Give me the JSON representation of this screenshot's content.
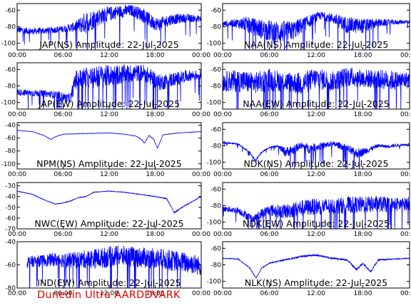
{
  "footer": "Dunedin Ultra AARDDVARK",
  "colors": {
    "trace": "#0000ff",
    "axis": "#000000",
    "footer": "#e00000"
  },
  "chart_data": [
    {
      "type": "line",
      "title": "JAP(NS) Amplitude: 22-Jul-2025",
      "xticks": [
        "00:00",
        "06:00",
        "12:00",
        "18:00",
        "00:00"
      ],
      "xlim": [
        0,
        24
      ],
      "yticks": [
        -100,
        -80,
        -60
      ],
      "ylim": [
        -108,
        -52
      ],
      "series": [
        {
          "kind": "noisy",
          "start": 0,
          "end": 24,
          "x": [
            0,
            2,
            4,
            6,
            7.5,
            9,
            11,
            13,
            15,
            16.5,
            17.5,
            18.5,
            20,
            22,
            24
          ],
          "y": [
            -84,
            -86,
            -85,
            -83,
            -81,
            -76,
            -68,
            -63,
            -61,
            -67,
            -75,
            -78,
            -72,
            -70,
            -71
          ],
          "noise": [
            4,
            4,
            4,
            4,
            6,
            14,
            10,
            8,
            7,
            9,
            9,
            8,
            7,
            5,
            4
          ]
        }
      ]
    },
    {
      "type": "line",
      "title": "NAA(NS) Amplitude: 22-Jul-2025",
      "xticks": [
        "00:00",
        "06:00",
        "12:00",
        "18:00",
        "00:00"
      ],
      "xlim": [
        0,
        24
      ],
      "yticks": [
        -100,
        -80,
        -60
      ],
      "ylim": [
        -108,
        -52
      ],
      "series": [
        {
          "kind": "noisy",
          "start": 0,
          "end": 24,
          "x": [
            0,
            1.5,
            3,
            5,
            7,
            9,
            11,
            12.5,
            14,
            16,
            18,
            20,
            22,
            24
          ],
          "y": [
            -77,
            -76,
            -78,
            -84,
            -88,
            -86,
            -75,
            -67,
            -70,
            -79,
            -80,
            -76,
            -75,
            -74
          ],
          "noise": [
            3,
            5,
            9,
            12,
            14,
            12,
            8,
            5,
            6,
            10,
            9,
            5,
            3,
            2
          ]
        }
      ]
    },
    {
      "type": "line",
      "title": "JAP(EW) Amplitude: 22-Jul-2025",
      "xticks": [
        "00:00",
        "06:00",
        "12:00",
        "18:00",
        "00:00"
      ],
      "xlim": [
        0,
        24
      ],
      "yticks": [
        -100,
        -80,
        -60
      ],
      "ylim": [
        -108,
        -52
      ],
      "series": [
        {
          "kind": "noisy",
          "start": 0,
          "end": 24,
          "x": [
            0,
            2,
            4,
            5.5,
            6.5,
            7,
            7.6,
            9,
            11,
            13,
            15,
            16.5,
            17.5,
            18.5,
            20,
            22,
            24
          ],
          "y": [
            -88,
            -89,
            -90,
            -92,
            -96,
            -95,
            -74,
            -72,
            -70,
            -68,
            -66,
            -65,
            -71,
            -77,
            -74,
            -69,
            -67
          ],
          "noise": [
            4,
            4,
            4,
            5,
            6,
            6,
            12,
            14,
            14,
            12,
            11,
            10,
            10,
            10,
            9,
            7,
            6
          ]
        }
      ]
    },
    {
      "type": "line",
      "title": "NAA(EW) Amplitude: 22-Jul-2025",
      "xticks": [
        "00:00",
        "06:00",
        "12:00",
        "18:00",
        "00:00"
      ],
      "xlim": [
        0,
        24
      ],
      "yticks": [
        -100,
        -80,
        -60
      ],
      "ylim": [
        -108,
        -52
      ],
      "series": [
        {
          "kind": "noisy",
          "start": 0,
          "end": 24,
          "x": [
            0,
            2,
            4,
            6,
            8,
            10,
            12,
            14,
            16,
            18,
            20,
            22,
            24
          ],
          "y": [
            -76,
            -75,
            -78,
            -74,
            -76,
            -79,
            -72,
            -76,
            -70,
            -72,
            -73,
            -75,
            -74
          ],
          "noise": [
            12,
            14,
            13,
            14,
            12,
            14,
            13,
            12,
            12,
            11,
            12,
            12,
            10
          ]
        }
      ]
    },
    {
      "type": "line",
      "title": "NPM(NS) Amplitude: 22-Jul-2025",
      "xticks": [
        "00:00",
        "06:00",
        "12:00",
        "18:00",
        "00:00"
      ],
      "xlim": [
        0,
        24
      ],
      "yticks": [
        -100,
        -80,
        -60,
        -40
      ],
      "ylim": [
        -108,
        -36
      ],
      "series": [
        {
          "kind": "smooth",
          "start": 0,
          "end": 24,
          "x": [
            0,
            2,
            3.5,
            4.4,
            5,
            6,
            9,
            12,
            14,
            15.5,
            16.2,
            16.6,
            17.2,
            17.8,
            18.3,
            19,
            21,
            24
          ],
          "y": [
            -48,
            -50,
            -56,
            -62,
            -58,
            -54,
            -53,
            -52,
            -54,
            -57,
            -62,
            -68,
            -56,
            -62,
            -76,
            -55,
            -52,
            -50
          ],
          "noise": [
            0.5,
            0.5,
            0.5,
            0.5,
            0.5,
            0.5,
            0.5,
            0.5,
            0.5,
            0.6,
            0.8,
            1,
            0.8,
            1,
            1,
            0.6,
            0.5,
            0.5
          ]
        }
      ]
    },
    {
      "type": "line",
      "title": "NDK(NS) Amplitude: 22-Jul-2025",
      "xticks": [
        "00:00",
        "06:00",
        "12:00",
        "18:00",
        "00:00"
      ],
      "xlim": [
        0,
        24
      ],
      "yticks": [
        -100,
        -80,
        -60
      ],
      "ylim": [
        -108,
        -52
      ],
      "series": [
        {
          "kind": "noisy",
          "start": 0,
          "end": 24,
          "x": [
            0,
            2,
            3.5,
            4.2,
            5,
            6,
            7,
            8,
            9,
            10,
            11,
            12,
            14,
            15,
            16,
            17,
            18,
            19,
            20,
            21,
            22,
            24
          ],
          "y": [
            -76,
            -78,
            -88,
            -98,
            -88,
            -82,
            -80,
            -88,
            -86,
            -80,
            -84,
            -82,
            -78,
            -80,
            -84,
            -90,
            -88,
            -84,
            -80,
            -81,
            -80,
            -78
          ],
          "noise": [
            1,
            1,
            1,
            1,
            1,
            1,
            1,
            6,
            6,
            4,
            6,
            5,
            3,
            4,
            5,
            6,
            5,
            3,
            2,
            2,
            2,
            1
          ]
        }
      ]
    },
    {
      "type": "line",
      "title": "NWC(EW) Amplitude: 22-Jul-2025",
      "xticks": [
        "00:00",
        "06:00",
        "12:00",
        "18:00",
        "00:00"
      ],
      "xlim": [
        0,
        24
      ],
      "yticks": [
        -70,
        -60,
        -50,
        -40,
        -30
      ],
      "ylim": [
        -70,
        -27
      ],
      "series": [
        {
          "kind": "smooth",
          "start": 0,
          "end": 24,
          "x": [
            0,
            2,
            3.5,
            5,
            6,
            7,
            8,
            9,
            10,
            12,
            14,
            16,
            18,
            19.5,
            20.5,
            21.5,
            22.5,
            24
          ],
          "y": [
            -35,
            -38,
            -43,
            -47,
            -46,
            -44,
            -41,
            -40,
            -36,
            -35,
            -36,
            -38,
            -40,
            -42,
            -55,
            -50,
            -46,
            -40
          ],
          "noise": [
            0.5,
            0.5,
            0.5,
            0.5,
            0.5,
            0.5,
            0.5,
            0.5,
            0.5,
            0.5,
            0.5,
            0.5,
            0.6,
            0.8,
            1,
            0.8,
            0.6,
            0.5
          ]
        }
      ]
    },
    {
      "type": "line",
      "title": "NDK(EW) Amplitude: 22-Jul-2025",
      "xticks": [
        "00:00",
        "06:00",
        "12:00",
        "18:00",
        "00:00"
      ],
      "xlim": [
        0,
        24
      ],
      "yticks": [
        -100,
        -80,
        -60
      ],
      "ylim": [
        -108,
        -52
      ],
      "series": [
        {
          "kind": "noisy",
          "start": 0,
          "end": 24,
          "x": [
            0,
            2,
            3,
            4,
            5,
            6,
            8,
            10,
            12,
            14,
            16,
            18,
            20,
            22,
            24
          ],
          "y": [
            -84,
            -86,
            -92,
            -97,
            -90,
            -86,
            -88,
            -84,
            -82,
            -82,
            -80,
            -80,
            -79,
            -80,
            -78
          ],
          "noise": [
            3,
            4,
            5,
            5,
            6,
            7,
            9,
            10,
            10,
            10,
            10,
            10,
            10,
            9,
            8
          ]
        }
      ]
    },
    {
      "type": "line",
      "title": "IND(EW) Amplitude: 22-Jul-2025",
      "xticks": [
        "00:00",
        "06:00",
        "12:00",
        "18:00",
        "00:00"
      ],
      "xlim": [
        0,
        24
      ],
      "yticks": [
        -80,
        -60,
        -40
      ],
      "ylim": [
        -80,
        -40
      ],
      "series": [
        {
          "kind": "noisy",
          "start": 1.3,
          "end": 24,
          "x": [
            1.3,
            3,
            5,
            7,
            9,
            11,
            13,
            15,
            17,
            19,
            21,
            23,
            24
          ],
          "y": [
            -58,
            -57,
            -56,
            -57,
            -56,
            -55,
            -53,
            -54,
            -55,
            -56,
            -58,
            -60,
            -62
          ],
          "noise": [
            5,
            5,
            6,
            7,
            8,
            9,
            9,
            9,
            9,
            9,
            9,
            9,
            8
          ]
        }
      ]
    },
    {
      "type": "line",
      "title": "NLK(NS) Amplitude: 22-Jul-2025",
      "xticks": [
        "00:00",
        "06:00",
        "12:00",
        "18:00",
        "00:00"
      ],
      "xlim": [
        0,
        24
      ],
      "yticks": [
        -100,
        -80,
        -60
      ],
      "ylim": [
        -108,
        -52
      ],
      "series": [
        {
          "kind": "smooth",
          "start": 0,
          "end": 24,
          "x": [
            0,
            2,
            3.5,
            4.3,
            5,
            6,
            8,
            10,
            12,
            14,
            16,
            17.2,
            18,
            19,
            20,
            22,
            24
          ],
          "y": [
            -72,
            -73,
            -84,
            -96,
            -84,
            -78,
            -74,
            -70,
            -68,
            -72,
            -74,
            -86,
            -78,
            -88,
            -74,
            -73,
            -72
          ],
          "noise": [
            1,
            1,
            1,
            1,
            1,
            1,
            2,
            2,
            2,
            2,
            2,
            3,
            2,
            3,
            2,
            1,
            1
          ]
        }
      ]
    }
  ]
}
